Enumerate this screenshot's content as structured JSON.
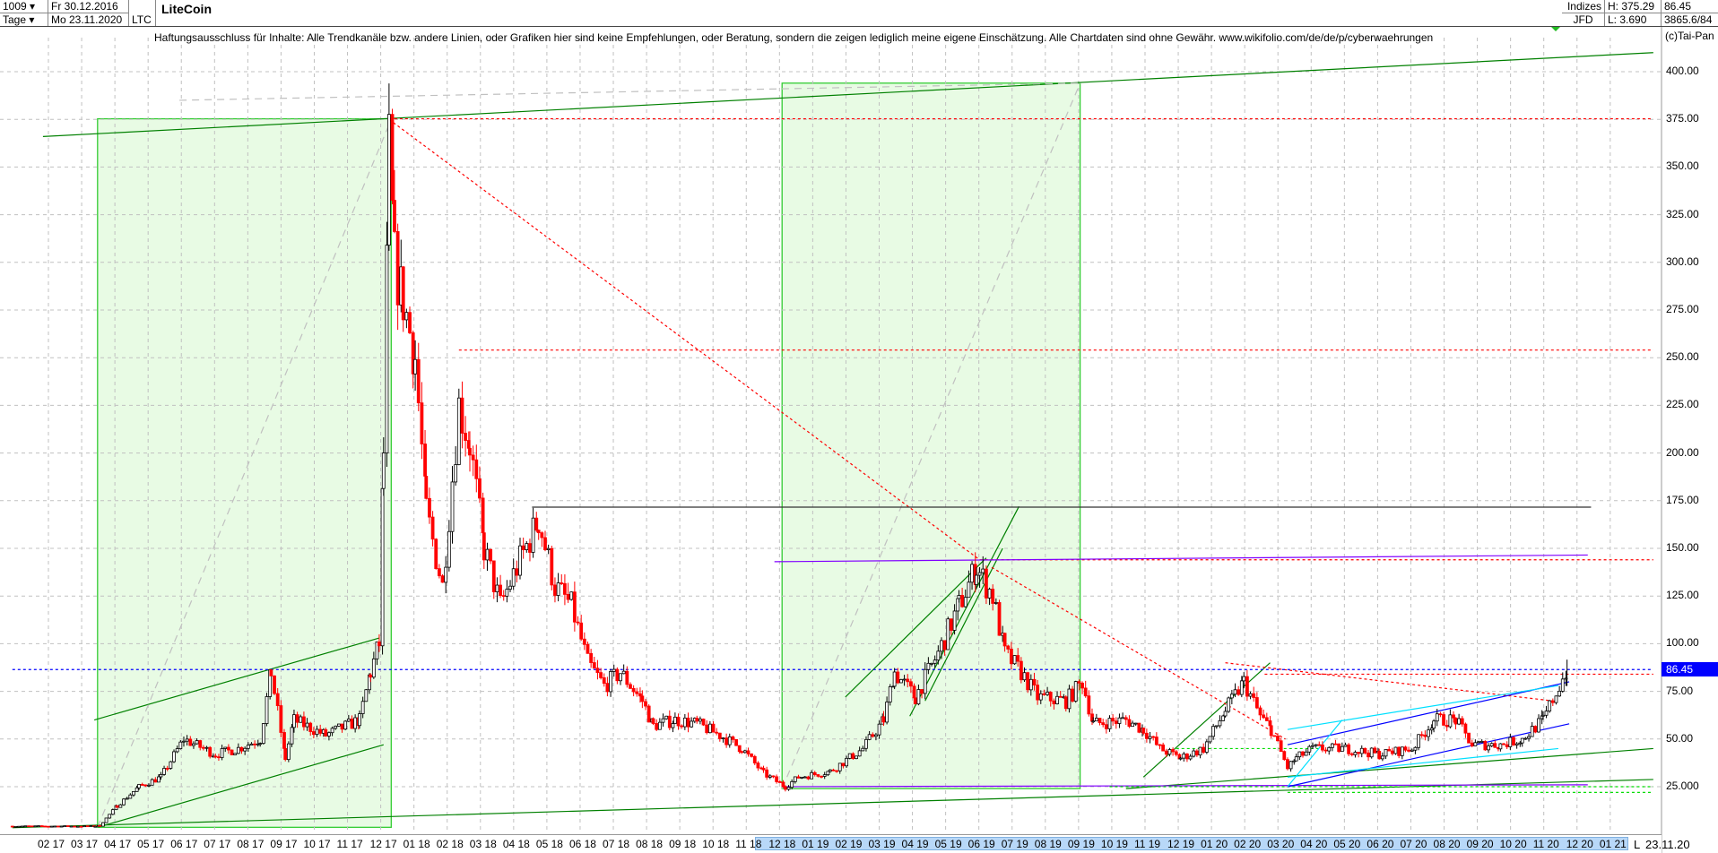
{
  "header": {
    "bar_count": "1009",
    "period": "Tage",
    "start_date": "Fr 30.12.2016",
    "end_date": "Mo 23.11.2020",
    "symbol": "LTC",
    "title": "LiteCoin",
    "market": "Indizes",
    "source": "JFD",
    "high": "H: 375.29",
    "low": "L: 3.690",
    "last": "86.45",
    "volume": "3865.6/84",
    "copyright": "(c)Tai-Pan"
  },
  "disclaimer": "Haftungsausschluss für Inhalte: Alle Trendkanäle bzw. andere Linien, oder Grafiken hier sind keine Empfehlungen, oder Beratung, sondern die zeigen lediglich meine eigene Einschätzung. Alle Chartdaten sind ohne Gewähr.  www.wikifolio.com/de/de/p/cyberwaehrungen",
  "colors": {
    "up": "#000000",
    "down": "#ff0000",
    "box_fill": "#e8fbe4",
    "box_stroke": "#33cc33",
    "trend_green": "#008000",
    "purple": "#8000ff",
    "blue": "#0000ff",
    "cyan": "#00e0ff",
    "grid": "#c0c0c0",
    "highlight": "#b8d8f8"
  },
  "chart_data": {
    "type": "candlestick",
    "title": "LiteCoin",
    "ylim": [
      0,
      410
    ],
    "y_ticks": [
      "25.000",
      "50.00",
      "75.00",
      "100.00",
      "125.00",
      "150.00",
      "175.00",
      "200.00",
      "225.00",
      "250.00",
      "275.00",
      "300.00",
      "325.00",
      "350.00",
      "375.00",
      "400.00"
    ],
    "x_ticks": [
      "02 17",
      "03 17",
      "04 17",
      "05 17",
      "06 17",
      "07 17",
      "08 17",
      "09 17",
      "10 17",
      "11 17",
      "12 17",
      "01 18",
      "02 18",
      "03 18",
      "04 18",
      "05 18",
      "06 18",
      "07 18",
      "08 18",
      "09 18",
      "10 18",
      "11 18",
      "12 18",
      "01 19",
      "02 19",
      "03 19",
      "04 19",
      "05 19",
      "06 19",
      "07 19",
      "08 19",
      "09 19",
      "10 19",
      "11 19",
      "12 19",
      "01 20",
      "02 20",
      "03 20",
      "04 20",
      "05 20",
      "06 20",
      "07 20",
      "08 20",
      "09 20",
      "10 20",
      "11 20",
      "12 20",
      "01 21"
    ],
    "x_highlight": [
      "11 18",
      "01 21"
    ],
    "last_date_label": "L",
    "last_date": "23.11.20",
    "current_price": 86.45,
    "grid": true,
    "price_path": [
      [
        "2016-12-30",
        4.3
      ],
      [
        "2017-03-16",
        4.3
      ],
      [
        "2017-03-20",
        4.5
      ],
      [
        "2017-04-05",
        15
      ],
      [
        "2017-04-25",
        25
      ],
      [
        "2017-05-15",
        30
      ],
      [
        "2017-06-05",
        50
      ],
      [
        "2017-07-04",
        42
      ],
      [
        "2017-07-25",
        45
      ],
      [
        "2017-08-14",
        50
      ],
      [
        "2017-08-24",
        85
      ],
      [
        "2017-09-06",
        40
      ],
      [
        "2017-09-14",
        60
      ],
      [
        "2017-10-13",
        52
      ],
      [
        "2017-11-13",
        60
      ],
      [
        "2017-11-23",
        85
      ],
      [
        "2017-12-01",
        100
      ],
      [
        "2017-12-05",
        200
      ],
      [
        "2017-12-10",
        360
      ],
      [
        "2017-12-15",
        300
      ],
      [
        "2017-12-23",
        280
      ],
      [
        "2018-01-03",
        250
      ],
      [
        "2018-01-13",
        170
      ],
      [
        "2018-01-28",
        130
      ],
      [
        "2018-02-12",
        225
      ],
      [
        "2018-02-22",
        205
      ],
      [
        "2018-03-07",
        150
      ],
      [
        "2018-03-22",
        120
      ],
      [
        "2018-04-06",
        140
      ],
      [
        "2018-04-26",
        165
      ],
      [
        "2018-05-11",
        130
      ],
      [
        "2018-05-26",
        120
      ],
      [
        "2018-06-10",
        90
      ],
      [
        "2018-06-25",
        78
      ],
      [
        "2018-07-10",
        85
      ],
      [
        "2018-07-30",
        70
      ],
      [
        "2018-08-09",
        57
      ],
      [
        "2018-08-29",
        60
      ],
      [
        "2018-09-18",
        58
      ],
      [
        "2018-10-09",
        52
      ],
      [
        "2018-10-29",
        45
      ],
      [
        "2018-11-18",
        32
      ],
      [
        "2018-12-08",
        25
      ],
      [
        "2018-12-20",
        30
      ],
      [
        "2019-01-18",
        33
      ],
      [
        "2019-02-17",
        45
      ],
      [
        "2019-03-08",
        60
      ],
      [
        "2019-03-18",
        85
      ],
      [
        "2019-04-06",
        72
      ],
      [
        "2019-04-27",
        95
      ],
      [
        "2019-05-16",
        120
      ],
      [
        "2019-06-01",
        140
      ],
      [
        "2019-06-16",
        125
      ],
      [
        "2019-06-27",
        95
      ],
      [
        "2019-07-12",
        85
      ],
      [
        "2019-07-27",
        72
      ],
      [
        "2019-08-22",
        70
      ],
      [
        "2019-09-06",
        80
      ],
      [
        "2019-09-16",
        58
      ],
      [
        "2019-10-16",
        60
      ],
      [
        "2019-11-01",
        55
      ],
      [
        "2019-11-16",
        45
      ],
      [
        "2019-12-05",
        40
      ],
      [
        "2019-12-26",
        45
      ],
      [
        "2020-01-15",
        65
      ],
      [
        "2020-02-01",
        80
      ],
      [
        "2020-02-16",
        62
      ],
      [
        "2020-02-26",
        55
      ],
      [
        "2020-03-12",
        35
      ],
      [
        "2020-03-20",
        40
      ],
      [
        "2020-04-04",
        45
      ],
      [
        "2020-05-04",
        45
      ],
      [
        "2020-06-04",
        42
      ],
      [
        "2020-07-04",
        45
      ],
      [
        "2020-07-24",
        60
      ],
      [
        "2020-08-13",
        60
      ],
      [
        "2020-08-28",
        47
      ],
      [
        "2020-09-23",
        47
      ],
      [
        "2020-10-13",
        50
      ],
      [
        "2020-11-01",
        60
      ],
      [
        "2020-11-23",
        86.45
      ]
    ],
    "boxes": [
      {
        "from": "2017-03-18",
        "to": "2017-12-12",
        "low": 3.7,
        "high": 375.3
      },
      {
        "from": "2018-12-05",
        "to": "2019-09-04",
        "low": 24,
        "high": 394
      }
    ],
    "lines": [
      {
        "style": "solid",
        "color": "trend_green",
        "from": [
          "2017-01-27",
          366
        ],
        "to": [
          "2021-02-10",
          410
        ]
      },
      {
        "style": "solid",
        "color": "trend_green",
        "from": [
          "2016-12-30",
          3.5
        ],
        "to": [
          "2021-02-10",
          28.8
        ]
      },
      {
        "style": "solid",
        "color": "trend_green",
        "from": [
          "2019-10-16",
          24
        ],
        "to": [
          "2021-02-10",
          45
        ]
      },
      {
        "style": "solid",
        "color": "trend_green",
        "from": [
          "2017-03-15",
          60
        ],
        "to": [
          "2017-12-01",
          103
        ]
      },
      {
        "style": "solid",
        "color": "trend_green",
        "from": [
          "2017-03-18",
          3.7
        ],
        "to": [
          "2017-12-05",
          47
        ]
      },
      {
        "style": "solid",
        "color": "trend_green",
        "from": [
          "2019-02-01",
          72
        ],
        "to": [
          "2019-06-10",
          145
        ]
      },
      {
        "style": "solid",
        "color": "trend_green",
        "from": [
          "2019-04-01",
          62
        ],
        "to": [
          "2019-07-10",
          172
        ]
      },
      {
        "style": "solid",
        "color": "trend_green",
        "from": [
          "2019-04-15",
          70
        ],
        "to": [
          "2019-06-25",
          150
        ]
      },
      {
        "style": "solid",
        "color": "trend_green",
        "from": [
          "2019-11-01",
          30
        ],
        "to": [
          "2020-02-25",
          90
        ]
      },
      {
        "style": "dashed",
        "color": "grid",
        "from": [
          "2017-03-18",
          3.7
        ],
        "to": [
          "2017-12-12",
          375
        ]
      },
      {
        "style": "dashed",
        "color": "grid",
        "from": [
          "2018-12-05",
          24
        ],
        "to": [
          "2019-09-04",
          394
        ]
      },
      {
        "style": "dashed",
        "color": "grid",
        "from": [
          "2017-06-01",
          385
        ],
        "to": [
          "2019-09-04",
          394
        ]
      },
      {
        "style": "dotted",
        "color": "down",
        "from": [
          "2017-12-10",
          375.29
        ],
        "to": [
          "2021-02-10",
          375.29
        ]
      },
      {
        "style": "dotted",
        "color": "down",
        "from": [
          "2018-02-12",
          254
        ],
        "to": [
          "2021-02-10",
          254
        ]
      },
      {
        "style": "dotted",
        "color": "down",
        "from": [
          "2017-12-10",
          375
        ],
        "to": [
          "2019-06-04",
          144
        ]
      },
      {
        "style": "dotted",
        "color": "down",
        "from": [
          "2019-06-04",
          144
        ],
        "to": [
          "2021-02-10",
          144
        ]
      },
      {
        "style": "dotted",
        "color": "down",
        "from": [
          "2019-06-15",
          140
        ],
        "to": [
          "2020-03-10",
          50
        ]
      },
      {
        "style": "dotted",
        "color": "down",
        "from": [
          "2020-01-15",
          90
        ],
        "to": [
          "2020-11-10",
          70
        ]
      },
      {
        "style": "dotted",
        "color": "down",
        "from": [
          "2020-02-20",
          84
        ],
        "to": [
          "2021-02-10",
          84
        ]
      },
      {
        "style": "dotted",
        "color": "blue",
        "from": [
          "2016-12-30",
          86.45
        ],
        "to": [
          "2021-02-10",
          86.45
        ]
      },
      {
        "style": "solid",
        "color": "#333333",
        "from": [
          "2018-04-20",
          171.6
        ],
        "to": [
          "2020-12-15",
          171.6
        ]
      },
      {
        "style": "solid",
        "color": "purple",
        "from": [
          "2018-11-28",
          143
        ],
        "to": [
          "2020-12-12",
          146.5
        ]
      },
      {
        "style": "solid",
        "color": "purple",
        "from": [
          "2018-12-05",
          25
        ],
        "to": [
          "2020-12-12",
          26
        ]
      },
      {
        "style": "dotted",
        "color": "#00dd00",
        "from": [
          "2019-10-01",
          25
        ],
        "to": [
          "2021-02-10",
          25
        ]
      },
      {
        "style": "dotted",
        "color": "#00dd00",
        "from": [
          "2020-03-12",
          22
        ],
        "to": [
          "2021-02-10",
          22
        ]
      },
      {
        "style": "dotted",
        "color": "#00dd00",
        "from": [
          "2019-12-01",
          45
        ],
        "to": [
          "2020-04-15",
          45
        ]
      },
      {
        "style": "solid",
        "color": "blue",
        "from": [
          "2020-03-12",
          47
        ],
        "to": [
          "2020-11-25",
          80
        ]
      },
      {
        "style": "solid",
        "color": "blue",
        "from": [
          "2020-03-12",
          25
        ],
        "to": [
          "2020-11-25",
          58
        ]
      },
      {
        "style": "solid",
        "color": "cyan",
        "from": [
          "2020-03-12",
          55
        ],
        "to": [
          "2020-11-15",
          78
        ]
      },
      {
        "style": "solid",
        "color": "cyan",
        "from": [
          "2020-03-12",
          30
        ],
        "to": [
          "2020-11-15",
          45
        ]
      },
      {
        "style": "solid",
        "color": "cyan",
        "from": [
          "2020-03-12",
          25
        ],
        "to": [
          "2020-05-01",
          60
        ]
      }
    ]
  }
}
